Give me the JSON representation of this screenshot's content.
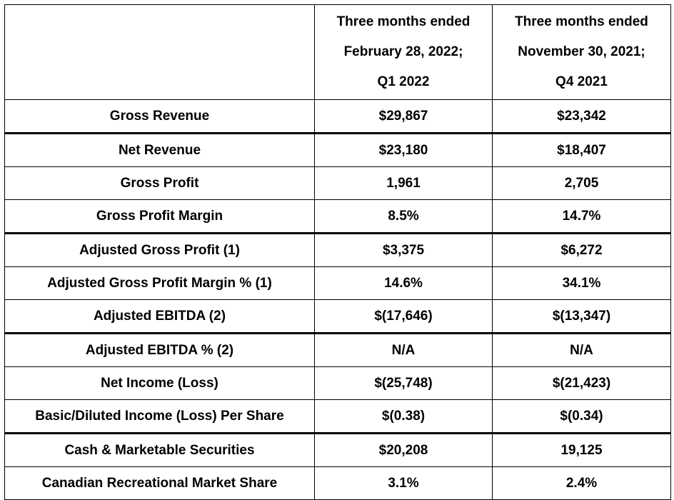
{
  "header": {
    "col1": [
      "Three months ended",
      "February 28, 2022;",
      "Q1 2022"
    ],
    "col2": [
      "Three months ended",
      "November 30, 2021;",
      "Q4 2021"
    ]
  },
  "rows": [
    {
      "label": "Gross Revenue",
      "q1": "$29,867",
      "q4": "$23,342"
    },
    {
      "label": "Net Revenue",
      "q1": "$23,180",
      "q4": "$18,407"
    },
    {
      "label": "Gross Profit",
      "q1": "1,961",
      "q4": "2,705"
    },
    {
      "label": "Gross Profit Margin",
      "q1": "8.5%",
      "q4": "14.7%"
    },
    {
      "label": "Adjusted Gross Profit (1)",
      "q1": "$3,375",
      "q4": "$6,272"
    },
    {
      "label": "Adjusted Gross Profit Margin % (1)",
      "q1": "14.6%",
      "q4": "34.1%"
    },
    {
      "label": "Adjusted EBITDA (2)",
      "q1": "$(17,646)",
      "q4": "$(13,347)"
    },
    {
      "label": "Adjusted EBITDA % (2)",
      "q1": "N/A",
      "q4": "N/A"
    },
    {
      "label": "Net Income (Loss)",
      "q1": "$(25,748)",
      "q4": "$(21,423)"
    },
    {
      "label": "Basic/Diluted Income (Loss) Per Share",
      "q1": "$(0.38)",
      "q4": "$(0.34)"
    },
    {
      "label": "Cash & Marketable Securities",
      "q1": "$20,208",
      "q4": "19,125"
    },
    {
      "label": "Canadian Recreational Market Share",
      "q1": "3.1%",
      "q4": "2.4%"
    }
  ]
}
